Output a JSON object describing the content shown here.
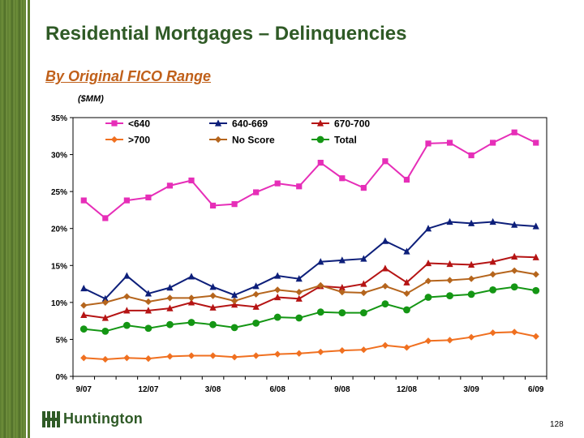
{
  "slide": {
    "title": "Residential Mortgages – Delinquencies",
    "subtitle": "By Original FICO Range",
    "units": "($MM)",
    "logo_text": "Huntington",
    "page_number": "128"
  },
  "colors": {
    "title": "#2f5a26",
    "subtitle": "#c0601a",
    "sidebar": "#5a7a2e"
  },
  "chart_data": {
    "type": "line",
    "x": [
      "9/07",
      "",
      "",
      "12/07",
      "",
      "",
      "3/08",
      "",
      "",
      "6/08",
      "",
      "",
      "9/08",
      "",
      "",
      "12/08",
      "",
      "",
      "3/09",
      "",
      "",
      "6/09"
    ],
    "yticks": [
      "0%",
      "5%",
      "10%",
      "15%",
      "20%",
      "25%",
      "30%",
      "35%"
    ],
    "ylim": [
      0,
      35
    ],
    "grid": false,
    "legend": "top",
    "series": [
      {
        "name": "<640",
        "color": "#e62eb8",
        "marker": "square",
        "values": [
          23.8,
          21.4,
          23.8,
          24.2,
          25.8,
          26.5,
          23.1,
          23.3,
          24.9,
          26.1,
          25.7,
          28.9,
          26.8,
          25.5,
          29.1,
          26.6,
          31.5,
          31.6,
          29.9,
          31.6,
          33.0,
          31.6
        ]
      },
      {
        "name": "640-669",
        "color": "#0d1f7a",
        "marker": "triangle",
        "values": [
          11.9,
          10.5,
          13.6,
          11.2,
          12.0,
          13.5,
          12.1,
          11.0,
          12.2,
          13.6,
          13.2,
          15.5,
          15.7,
          15.9,
          18.3,
          16.9,
          20.0,
          20.9,
          20.7,
          20.9,
          20.5,
          20.3
        ]
      },
      {
        "name": "670-700",
        "color": "#b51414",
        "marker": "triangle",
        "values": [
          8.3,
          7.9,
          8.9,
          8.9,
          9.2,
          10.0,
          9.3,
          9.7,
          9.4,
          10.7,
          10.5,
          12.2,
          12.0,
          12.5,
          14.6,
          12.7,
          15.3,
          15.2,
          15.1,
          15.5,
          16.2,
          16.1
        ]
      },
      {
        "name": ">700",
        "color": "#f07020",
        "marker": "diamond",
        "values": [
          2.5,
          2.3,
          2.5,
          2.4,
          2.7,
          2.8,
          2.8,
          2.6,
          2.8,
          3.0,
          3.1,
          3.3,
          3.5,
          3.6,
          4.2,
          3.9,
          4.8,
          4.9,
          5.3,
          5.9,
          6.0,
          5.4
        ]
      },
      {
        "name": "No Score",
        "color": "#b5651d",
        "marker": "diamond",
        "values": [
          9.6,
          10.0,
          10.8,
          10.1,
          10.6,
          10.6,
          10.9,
          10.2,
          11.1,
          11.7,
          11.4,
          12.3,
          11.4,
          11.3,
          12.2,
          11.2,
          12.9,
          13.0,
          13.2,
          13.8,
          14.3,
          13.8
        ]
      },
      {
        "name": "Total",
        "color": "#149614",
        "marker": "circle",
        "values": [
          6.4,
          6.1,
          6.9,
          6.5,
          7.0,
          7.3,
          7.0,
          6.6,
          7.2,
          8.0,
          7.9,
          8.7,
          8.6,
          8.6,
          9.8,
          9.0,
          10.7,
          10.9,
          11.1,
          11.7,
          12.1,
          11.6
        ]
      }
    ]
  }
}
